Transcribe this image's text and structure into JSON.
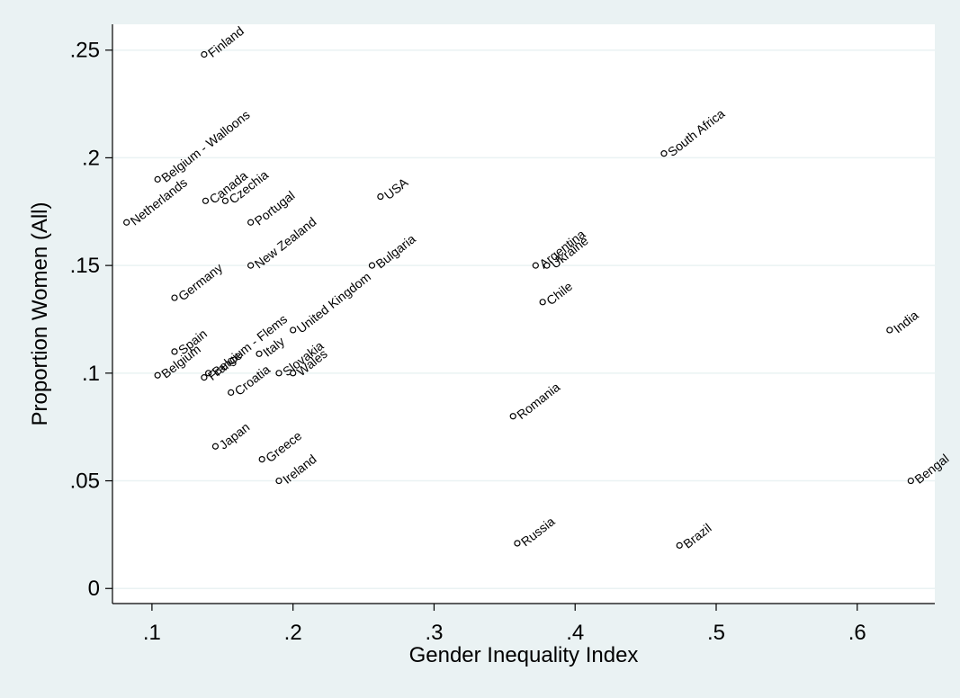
{
  "chart_data": {
    "type": "scatter",
    "title": "",
    "xlabel": "Gender Inequality Index",
    "ylabel": "Proportion Women (All)",
    "xlim": [
      0.072,
      0.655
    ],
    "ylim": [
      -0.007,
      0.262
    ],
    "x_ticks": [
      0.1,
      0.2,
      0.3,
      0.4,
      0.5,
      0.6
    ],
    "x_tick_labels": [
      ".1",
      ".2",
      ".3",
      ".4",
      ".5",
      ".6"
    ],
    "y_ticks": [
      0,
      0.05,
      0.1,
      0.15,
      0.2,
      0.25
    ],
    "y_tick_labels": [
      "0",
      ".05",
      ".1",
      ".15",
      ".2",
      ".25"
    ],
    "grid": true,
    "legend": "none",
    "colors": {
      "background": "#eaf2f3",
      "plot_area": "#ffffff",
      "grid": "#eaf2f3",
      "marker": "#000000"
    },
    "points": [
      {
        "label": "Finland",
        "x": 0.137,
        "y": 0.248
      },
      {
        "label": "Belgium - Walloons",
        "x": 0.104,
        "y": 0.19
      },
      {
        "label": "Netherlands",
        "x": 0.082,
        "y": 0.17
      },
      {
        "label": "Canada",
        "x": 0.138,
        "y": 0.18
      },
      {
        "label": "Czechia",
        "x": 0.152,
        "y": 0.18
      },
      {
        "label": "Portugal",
        "x": 0.17,
        "y": 0.17
      },
      {
        "label": "New Zealand",
        "x": 0.17,
        "y": 0.15
      },
      {
        "label": "USA",
        "x": 0.262,
        "y": 0.182
      },
      {
        "label": "Bulgaria",
        "x": 0.256,
        "y": 0.15
      },
      {
        "label": "Germany",
        "x": 0.116,
        "y": 0.135
      },
      {
        "label": "United Kingdom",
        "x": 0.2,
        "y": 0.12
      },
      {
        "label": "Spain",
        "x": 0.116,
        "y": 0.11
      },
      {
        "label": "Belgium - Flems",
        "x": 0.14,
        "y": 0.1
      },
      {
        "label": "Belgium",
        "x": 0.104,
        "y": 0.099
      },
      {
        "label": "France",
        "x": 0.137,
        "y": 0.098
      },
      {
        "label": "Italy",
        "x": 0.176,
        "y": 0.109
      },
      {
        "label": "Slovakia",
        "x": 0.19,
        "y": 0.1
      },
      {
        "label": "Wales",
        "x": 0.2,
        "y": 0.1
      },
      {
        "label": "Croatia",
        "x": 0.156,
        "y": 0.091
      },
      {
        "label": "Japan",
        "x": 0.145,
        "y": 0.066
      },
      {
        "label": "Greece",
        "x": 0.178,
        "y": 0.06
      },
      {
        "label": "Ireland",
        "x": 0.19,
        "y": 0.05
      },
      {
        "label": "South Africa",
        "x": 0.463,
        "y": 0.202
      },
      {
        "label": "Argentina",
        "x": 0.372,
        "y": 0.15
      },
      {
        "label": "Ukraine",
        "x": 0.38,
        "y": 0.15
      },
      {
        "label": "Chile",
        "x": 0.377,
        "y": 0.133
      },
      {
        "label": "Romania",
        "x": 0.356,
        "y": 0.08
      },
      {
        "label": "Russia",
        "x": 0.359,
        "y": 0.021
      },
      {
        "label": "Brazil",
        "x": 0.474,
        "y": 0.02
      },
      {
        "label": "India",
        "x": 0.623,
        "y": 0.12
      },
      {
        "label": "Bengal",
        "x": 0.638,
        "y": 0.05
      }
    ]
  }
}
